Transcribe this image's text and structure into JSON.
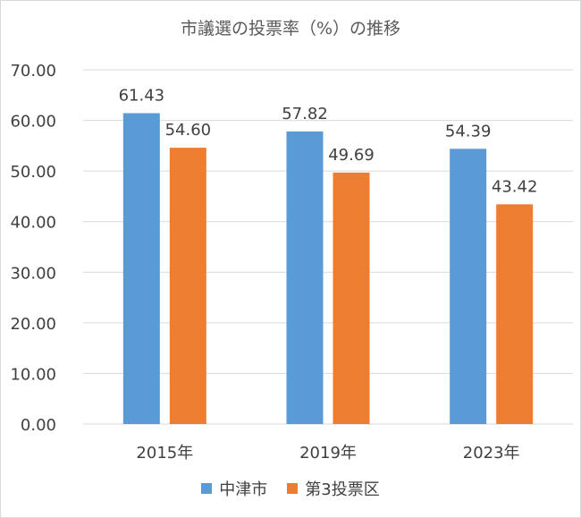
{
  "chart_data": {
    "type": "bar",
    "title": "市議選の投票率（%）の推移",
    "categories": [
      "2015年",
      "2019年",
      "2023年"
    ],
    "series": [
      {
        "name": "中津市",
        "values": [
          61.43,
          57.82,
          54.39
        ],
        "labels": [
          "61.43",
          "57.82",
          "54.39"
        ],
        "color": "#5b9bd5"
      },
      {
        "name": "第3投票区",
        "values": [
          54.6,
          49.69,
          43.42
        ],
        "labels": [
          "54.60",
          "49.69",
          "43.42"
        ],
        "color": "#ed7d31"
      }
    ],
    "ylim": [
      0,
      70
    ],
    "yticks": [
      "0.00",
      "10.00",
      "20.00",
      "30.00",
      "40.00",
      "50.00",
      "60.00",
      "70.00"
    ],
    "grid": true,
    "legend_position": "bottom"
  }
}
